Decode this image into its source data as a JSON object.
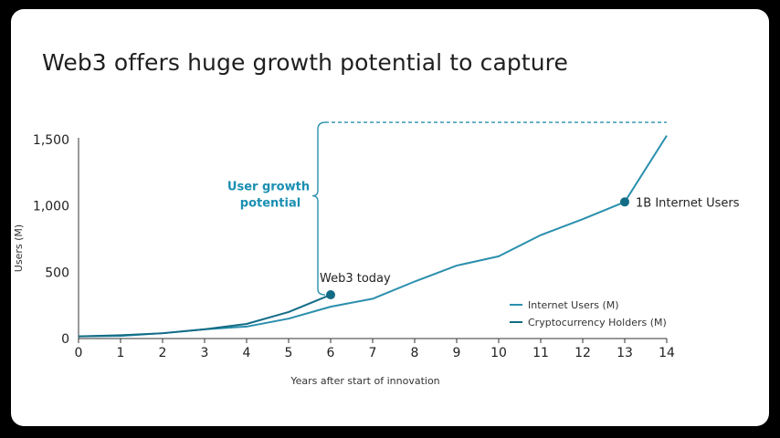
{
  "title": "Web3 offers huge growth potential to capture",
  "colors": {
    "internet": "#2a8fad",
    "crypto": "#136c86",
    "growth_text": "#1a8fb2",
    "axis": "#333333"
  },
  "chart_data": {
    "type": "line",
    "title": "Web3 offers huge growth potential to capture",
    "xlabel": "Years after start of innovation",
    "ylabel": "Users (M)",
    "xlim": [
      0,
      14
    ],
    "ylim": [
      0,
      1500
    ],
    "x_ticks": [
      "0",
      "1",
      "2",
      "3",
      "4",
      "5",
      "6",
      "7",
      "8",
      "9",
      "10",
      "11",
      "12",
      "13",
      "14"
    ],
    "y_ticks": [
      {
        "value": 0,
        "label": "0"
      },
      {
        "value": 500,
        "label": "500"
      },
      {
        "value": 1000,
        "label": "1,000"
      },
      {
        "value": 1500,
        "label": "1,500"
      }
    ],
    "grid": false,
    "legend_position": "bottom-right",
    "series": [
      {
        "name": "Internet Users (M)",
        "color": "#2a8fad",
        "x": [
          0,
          1,
          2,
          3,
          4,
          5,
          6,
          7,
          8,
          9,
          10,
          11,
          12,
          13,
          14
        ],
        "y": [
          16,
          20,
          40,
          70,
          90,
          150,
          240,
          300,
          430,
          550,
          620,
          780,
          900,
          1030,
          1530
        ]
      },
      {
        "name": "Cryptocurrency Holders (M)",
        "color": "#136c86",
        "x": [
          0,
          1,
          2,
          3,
          4,
          5,
          6
        ],
        "y": [
          16,
          25,
          40,
          70,
          110,
          200,
          330
        ]
      }
    ],
    "annotations": {
      "web3_today": {
        "label": "Web3 today",
        "x": 6,
        "y": 330
      },
      "internet_1b": {
        "label": "1B Internet Users",
        "x": 13,
        "y": 1030
      },
      "growth_line_1": "User growth",
      "growth_line_2": "potential",
      "target_value": 1630
    }
  }
}
